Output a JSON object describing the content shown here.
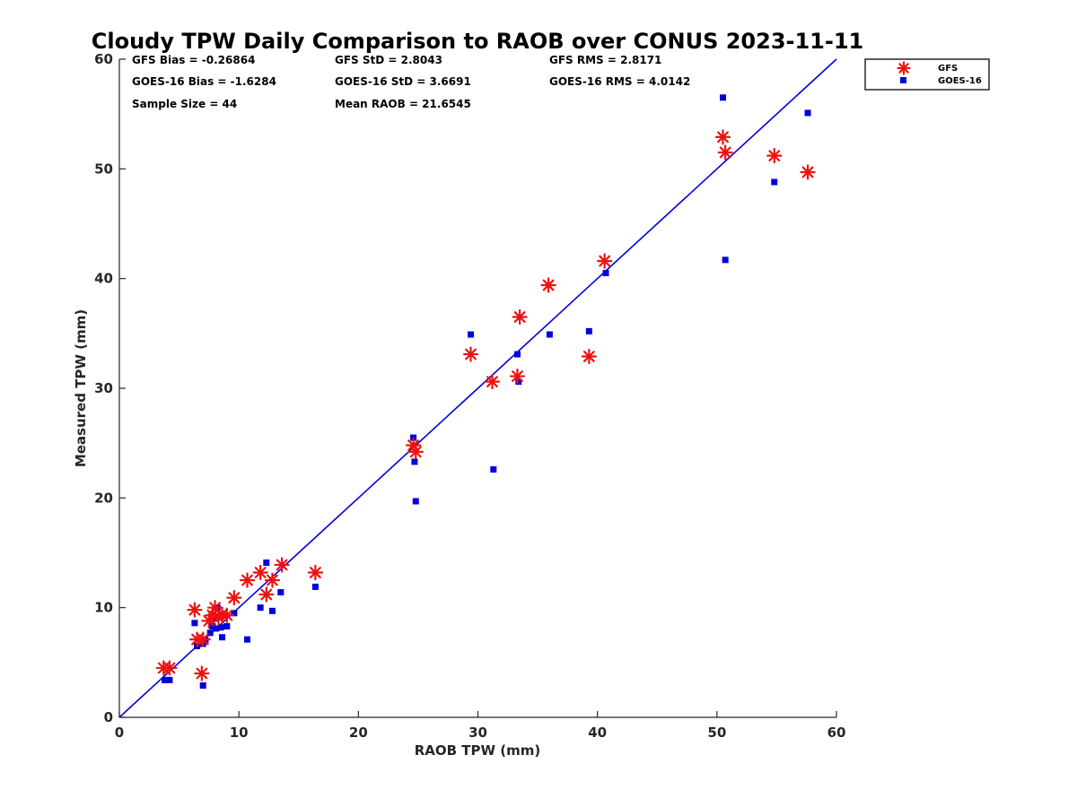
{
  "chart_data": {
    "type": "scatter",
    "title": "Cloudy TPW Daily Comparison to RAOB over CONUS 2023-11-11",
    "xlabel": "RAOB TPW (mm)",
    "ylabel": "Measured TPW (mm)",
    "xlim": [
      0,
      60
    ],
    "ylim": [
      0,
      60
    ],
    "xticks": [
      "0",
      "10",
      "20",
      "30",
      "40",
      "50",
      "60"
    ],
    "yticks": [
      "0",
      "10",
      "20",
      "30",
      "40",
      "50",
      "60"
    ],
    "grid": false,
    "legend_position": "top-right outside",
    "stats": [
      [
        "GFS Bias = -0.26864",
        "GFS StD = 2.8043",
        "GFS RMS = 2.8171"
      ],
      [
        "GOES-16 Bias = -1.6284",
        "GOES-16 StD = 3.6691",
        "GOES-16 RMS = 4.0142"
      ],
      [
        "Sample Size = 44",
        "Mean RAOB = 21.6545",
        ""
      ]
    ],
    "reference_line": {
      "name": "1:1 line",
      "from": [
        0,
        0
      ],
      "to": [
        60,
        60
      ],
      "color": "#0000dd"
    },
    "series": [
      {
        "name": "GFS",
        "marker": "asterisk",
        "color": "#ee1111",
        "points": [
          [
            3.7,
            4.5
          ],
          [
            4.2,
            4.5
          ],
          [
            6.9,
            4.0
          ],
          [
            6.3,
            9.8
          ],
          [
            6.5,
            7.1
          ],
          [
            7.0,
            7.1
          ],
          [
            7.5,
            8.8
          ],
          [
            7.8,
            9.3
          ],
          [
            8.0,
            10.0
          ],
          [
            8.3,
            9.1
          ],
          [
            8.6,
            9.4
          ],
          [
            9.0,
            9.3
          ],
          [
            9.6,
            10.9
          ],
          [
            10.7,
            12.5
          ],
          [
            11.8,
            13.2
          ],
          [
            12.3,
            11.2
          ],
          [
            12.8,
            12.5
          ],
          [
            13.6,
            13.9
          ],
          [
            16.4,
            13.2
          ],
          [
            24.6,
            24.8
          ],
          [
            24.8,
            24.2
          ],
          [
            29.4,
            33.1
          ],
          [
            31.2,
            30.6
          ],
          [
            33.3,
            31.1
          ],
          [
            33.5,
            36.5
          ],
          [
            35.9,
            39.4
          ],
          [
            39.3,
            32.9
          ],
          [
            40.6,
            41.6
          ],
          [
            50.5,
            52.9
          ],
          [
            50.7,
            51.5
          ],
          [
            54.8,
            51.2
          ],
          [
            57.6,
            49.7
          ]
        ]
      },
      {
        "name": "GOES-16",
        "marker": "square",
        "color": "#0000dd",
        "points": [
          [
            3.8,
            3.4
          ],
          [
            4.2,
            3.4
          ],
          [
            6.3,
            8.6
          ],
          [
            6.5,
            6.5
          ],
          [
            7.0,
            2.9
          ],
          [
            7.0,
            6.7
          ],
          [
            7.2,
            7.0
          ],
          [
            7.6,
            7.7
          ],
          [
            7.8,
            8.3
          ],
          [
            8.0,
            9.0
          ],
          [
            8.1,
            8.1
          ],
          [
            8.2,
            10.0
          ],
          [
            8.5,
            8.2
          ],
          [
            8.6,
            7.3
          ],
          [
            9.0,
            8.3
          ],
          [
            9.6,
            9.5
          ],
          [
            10.7,
            7.1
          ],
          [
            11.8,
            10.0
          ],
          [
            12.3,
            14.1
          ],
          [
            12.8,
            9.7
          ],
          [
            13.5,
            11.4
          ],
          [
            16.4,
            11.9
          ],
          [
            24.6,
            25.5
          ],
          [
            24.7,
            23.3
          ],
          [
            24.8,
            19.7
          ],
          [
            29.4,
            34.9
          ],
          [
            31.3,
            22.6
          ],
          [
            33.3,
            33.1
          ],
          [
            33.4,
            30.6
          ],
          [
            36.0,
            34.9
          ],
          [
            39.3,
            35.2
          ],
          [
            40.7,
            40.5
          ],
          [
            50.5,
            56.5
          ],
          [
            50.7,
            41.7
          ],
          [
            54.8,
            48.8
          ],
          [
            57.6,
            55.1
          ]
        ]
      }
    ]
  }
}
